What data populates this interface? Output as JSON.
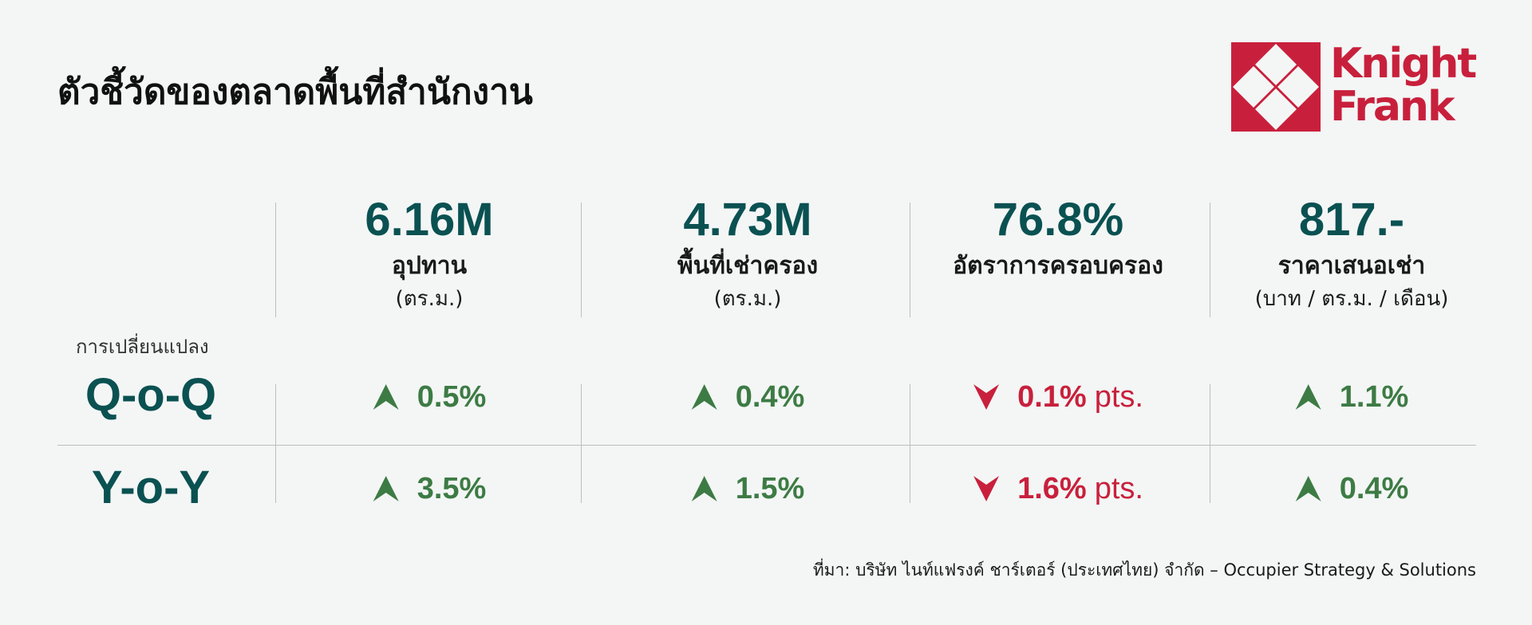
{
  "title": "ตัวชี้วัดของตลาดพื้นที่สำนักงาน",
  "logo": {
    "line1": "Knight",
    "line2": "Frank",
    "color": "#c8203c"
  },
  "metrics": [
    {
      "value": "6.16M",
      "label": "อุปทาน",
      "unit": "(ตร.ม.)"
    },
    {
      "value": "4.73M",
      "label": "พื้นที่เช่าครอง",
      "unit": "(ตร.ม.)"
    },
    {
      "value": "76.8%",
      "label": "อัตราการครอบครอง",
      "unit": ""
    },
    {
      "value": "817.-",
      "label": "ราคาเสนอเช่า",
      "unit": "(บาท / ตร.ม. / เดือน)"
    }
  ],
  "change_label": "การเปลี่ยนแปลง",
  "rows": [
    {
      "label": "Q-o-Q",
      "cells": [
        {
          "direction": "up",
          "value": "0.5%",
          "suffix": ""
        },
        {
          "direction": "up",
          "value": "0.4%",
          "suffix": ""
        },
        {
          "direction": "down",
          "value": "0.1%",
          "suffix": "pts."
        },
        {
          "direction": "up",
          "value": "1.1%",
          "suffix": ""
        }
      ]
    },
    {
      "label": "Y-o-Y",
      "cells": [
        {
          "direction": "up",
          "value": "3.5%",
          "suffix": ""
        },
        {
          "direction": "up",
          "value": "1.5%",
          "suffix": ""
        },
        {
          "direction": "down",
          "value": "1.6%",
          "suffix": "pts."
        },
        {
          "direction": "up",
          "value": "0.4%",
          "suffix": ""
        }
      ]
    }
  ],
  "colors": {
    "teal": "#0b5152",
    "up": "#3d7b44",
    "down": "#c8203c",
    "background": "#f3f6f5"
  },
  "source": "ที่มา: บริษัท ไนท์แฟรงค์ ชาร์เตอร์ (ประเทศไทย) จำกัด – Occupier Strategy & Solutions"
}
